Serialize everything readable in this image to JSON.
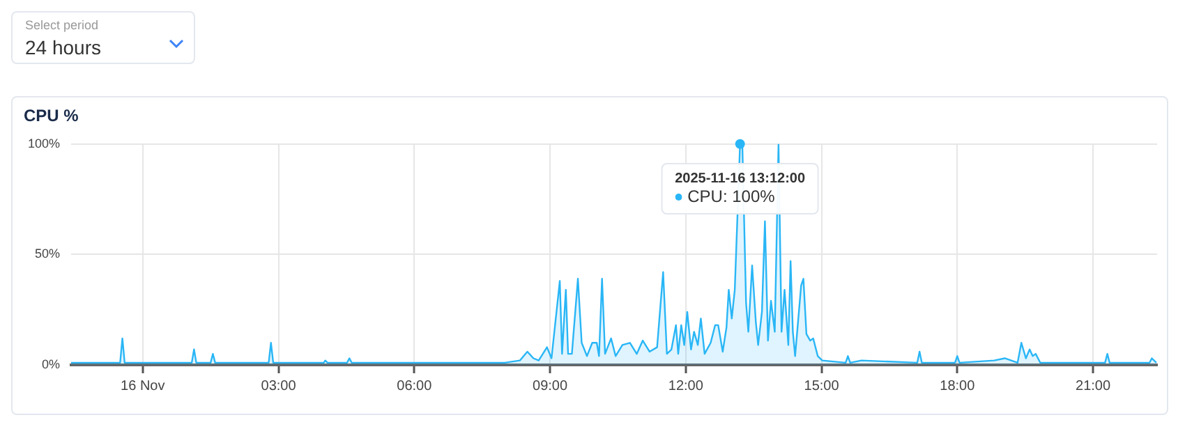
{
  "chart_data": {
    "type": "area",
    "title": "CPU %",
    "annotations": [
      "Select period",
      "24 hours",
      {
        "text": "2025-11-16 13:12:00\nCPU: 100%",
        "x": "2025-11-16T13:12",
        "y": 100
      }
    ],
    "x": [
      "2025-11-15T22:25",
      "2025-11-15T23:25",
      "2025-11-15T23:30",
      "2025-11-15T23:33",
      "2025-11-15T23:36",
      "2025-11-16T01:05",
      "2025-11-16T01:08",
      "2025-11-16T01:11",
      "2025-11-16T01:30",
      "2025-11-16T01:33",
      "2025-11-16T01:36",
      "2025-11-16T02:47",
      "2025-11-16T02:50",
      "2025-11-16T02:53",
      "2025-11-16T04:00",
      "2025-11-16T04:02",
      "2025-11-16T04:05",
      "2025-11-16T04:31",
      "2025-11-16T04:34",
      "2025-11-16T04:37",
      "2025-11-16T08:00",
      "2025-11-16T08:20",
      "2025-11-16T08:30",
      "2025-11-16T08:38",
      "2025-11-16T08:45",
      "2025-11-16T08:56",
      "2025-11-16T09:02",
      "2025-11-16T09:13",
      "2025-11-16T09:16",
      "2025-11-16T09:21",
      "2025-11-16T09:24",
      "2025-11-16T09:29",
      "2025-11-16T09:37",
      "2025-11-16T09:42",
      "2025-11-16T09:49",
      "2025-11-16T09:56",
      "2025-11-16T10:02",
      "2025-11-16T10:05",
      "2025-11-16T10:09",
      "2025-11-16T10:13",
      "2025-11-16T10:21",
      "2025-11-16T10:27",
      "2025-11-16T10:36",
      "2025-11-16T10:46",
      "2025-11-16T10:55",
      "2025-11-16T11:03",
      "2025-11-16T11:12",
      "2025-11-16T11:22",
      "2025-11-16T11:30",
      "2025-11-16T11:35",
      "2025-11-16T11:41",
      "2025-11-16T11:47",
      "2025-11-16T11:50",
      "2025-11-16T11:54",
      "2025-11-16T11:58",
      "2025-11-16T12:02",
      "2025-11-16T12:07",
      "2025-11-16T12:11",
      "2025-11-16T12:16",
      "2025-11-16T12:20",
      "2025-11-16T12:25",
      "2025-11-16T12:33",
      "2025-11-16T12:39",
      "2025-11-16T12:43",
      "2025-11-16T12:49",
      "2025-11-16T12:54",
      "2025-11-16T12:57",
      "2025-11-16T13:01",
      "2025-11-16T13:05",
      "2025-11-16T13:12",
      "2025-11-16T13:15",
      "2025-11-16T13:20",
      "2025-11-16T13:23",
      "2025-11-16T13:28",
      "2025-11-16T13:33",
      "2025-11-16T13:36",
      "2025-11-16T13:41",
      "2025-11-16T13:45",
      "2025-11-16T13:49",
      "2025-11-16T13:53",
      "2025-11-16T13:58",
      "2025-11-16T14:03",
      "2025-11-16T14:07",
      "2025-11-16T14:11",
      "2025-11-16T14:16",
      "2025-11-16T14:19",
      "2025-11-16T14:22",
      "2025-11-16T14:25",
      "2025-11-16T14:30",
      "2025-11-16T14:33",
      "2025-11-16T14:36",
      "2025-11-16T14:40",
      "2025-11-16T14:45",
      "2025-11-16T14:49",
      "2025-11-16T14:55",
      "2025-11-16T15:01",
      "2025-11-16T15:32",
      "2025-11-16T15:35",
      "2025-11-16T15:38",
      "2025-11-16T15:53",
      "2025-11-16T17:07",
      "2025-11-16T17:10",
      "2025-11-16T17:13",
      "2025-11-16T17:57",
      "2025-11-16T18:00",
      "2025-11-16T18:03",
      "2025-11-16T18:49",
      "2025-11-16T19:03",
      "2025-11-16T19:20",
      "2025-11-16T19:25",
      "2025-11-16T19:31",
      "2025-11-16T19:36",
      "2025-11-16T19:40",
      "2025-11-16T19:44",
      "2025-11-16T19:50",
      "2025-11-16T21:16",
      "2025-11-16T21:19",
      "2025-11-16T21:22",
      "2025-11-16T22:15",
      "2025-11-16T22:18",
      "2025-11-16T22:24"
    ],
    "series": [
      {
        "color": "#29b6f6",
        "values": [
          1,
          1,
          1,
          12,
          1,
          1,
          7,
          1,
          1,
          5,
          1,
          1,
          10,
          1,
          1,
          2,
          1,
          1,
          3,
          1,
          1,
          2,
          6,
          3,
          2,
          8,
          3,
          38,
          5,
          34,
          5,
          5,
          39,
          10,
          4,
          10,
          10,
          4,
          39,
          5,
          12,
          4,
          9,
          10,
          5,
          11,
          6,
          8,
          42,
          5,
          7,
          18,
          5,
          18,
          9,
          24,
          7,
          15,
          9,
          21,
          5,
          10,
          18,
          18,
          6,
          17,
          34,
          21,
          34,
          100,
          100,
          28,
          15,
          45,
          19,
          9,
          24,
          65,
          11,
          29,
          15,
          100,
          15,
          34,
          9,
          47,
          15,
          4,
          24,
          36,
          39,
          14,
          11,
          12,
          4,
          2,
          1,
          4,
          1,
          2,
          1,
          6,
          1,
          1,
          4,
          1,
          2,
          3,
          1,
          10,
          3,
          7,
          4,
          5,
          1,
          1,
          5,
          1,
          1,
          3,
          1
        ]
      }
    ],
    "xlim": [
      "2025-11-15T22:25",
      "2025-11-16T22:25"
    ],
    "xticks": [
      {
        "value": "2025-11-16T00:00",
        "label": "16 Nov"
      },
      {
        "value": "2025-11-16T03:00",
        "label": "03:00"
      },
      {
        "value": "2025-11-16T06:00",
        "label": "06:00"
      },
      {
        "value": "2025-11-16T09:00",
        "label": "09:00"
      },
      {
        "value": "2025-11-16T12:00",
        "label": "12:00"
      },
      {
        "value": "2025-11-16T15:00",
        "label": "15:00"
      },
      {
        "value": "2025-11-16T18:00",
        "label": "18:00"
      },
      {
        "value": "2025-11-16T21:00",
        "label": "21:00"
      }
    ],
    "ylim": [
      0,
      100
    ],
    "yticks": [
      {
        "value": 0,
        "label": "0%"
      },
      {
        "value": 50,
        "label": "50%"
      },
      {
        "value": 100,
        "label": "100%"
      }
    ],
    "grid": true,
    "legend": false,
    "marker": "none",
    "line_style": "solid"
  }
}
